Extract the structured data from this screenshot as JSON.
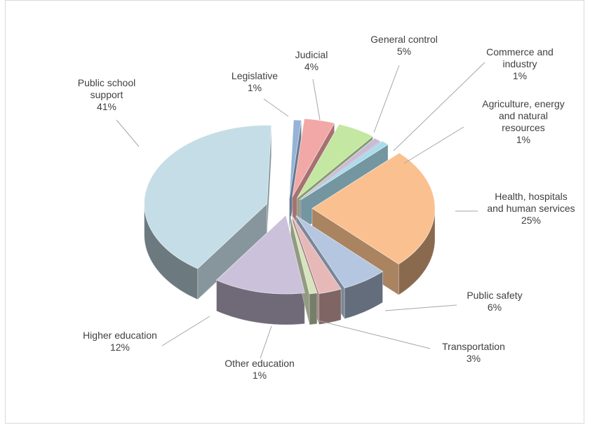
{
  "chart_data": {
    "type": "pie",
    "variant": "3d-exploded",
    "title": "",
    "legend": "none",
    "slices": [
      {
        "key": "legislative",
        "label": [
          "Legislative"
        ],
        "value_label": "1%",
        "value": 1,
        "color": "#95b3d7"
      },
      {
        "key": "judicial",
        "label": [
          "Judicial"
        ],
        "value_label": "4%",
        "value": 4,
        "color": "#f2a8a6"
      },
      {
        "key": "general-control",
        "label": [
          "General control"
        ],
        "value_label": "5%",
        "value": 5,
        "color": "#c4e7a1"
      },
      {
        "key": "commerce-industry",
        "label": [
          "Commerce and",
          "industry"
        ],
        "value_label": "1%",
        "value": 1,
        "color": "#c9bbd8"
      },
      {
        "key": "agriculture",
        "label": [
          "Agriculture, energy",
          "and natural",
          "resources"
        ],
        "value_label": "1%",
        "value": 1,
        "color": "#a9dcec"
      },
      {
        "key": "health",
        "label": [
          "Health, hospitals",
          "and human services"
        ],
        "value_label": "25%",
        "value": 25,
        "color": "#fac08f"
      },
      {
        "key": "public-safety",
        "label": [
          "Public safety"
        ],
        "value_label": "6%",
        "value": 6,
        "color": "#b4c6e0"
      },
      {
        "key": "transportation",
        "label": [
          "Transportation"
        ],
        "value_label": "3%",
        "value": 3,
        "color": "#e6b9b8"
      },
      {
        "key": "other-education",
        "label": [
          "Other education"
        ],
        "value_label": "1%",
        "value": 1,
        "color": "#d7e4bd"
      },
      {
        "key": "higher-education",
        "label": [
          "Higher education"
        ],
        "value_label": "12%",
        "value": 12,
        "color": "#ccc1da"
      },
      {
        "key": "public-school",
        "label": [
          "Public school",
          "support"
        ],
        "value_label": "41%",
        "value": 41,
        "color": "#c5dde6"
      }
    ]
  }
}
